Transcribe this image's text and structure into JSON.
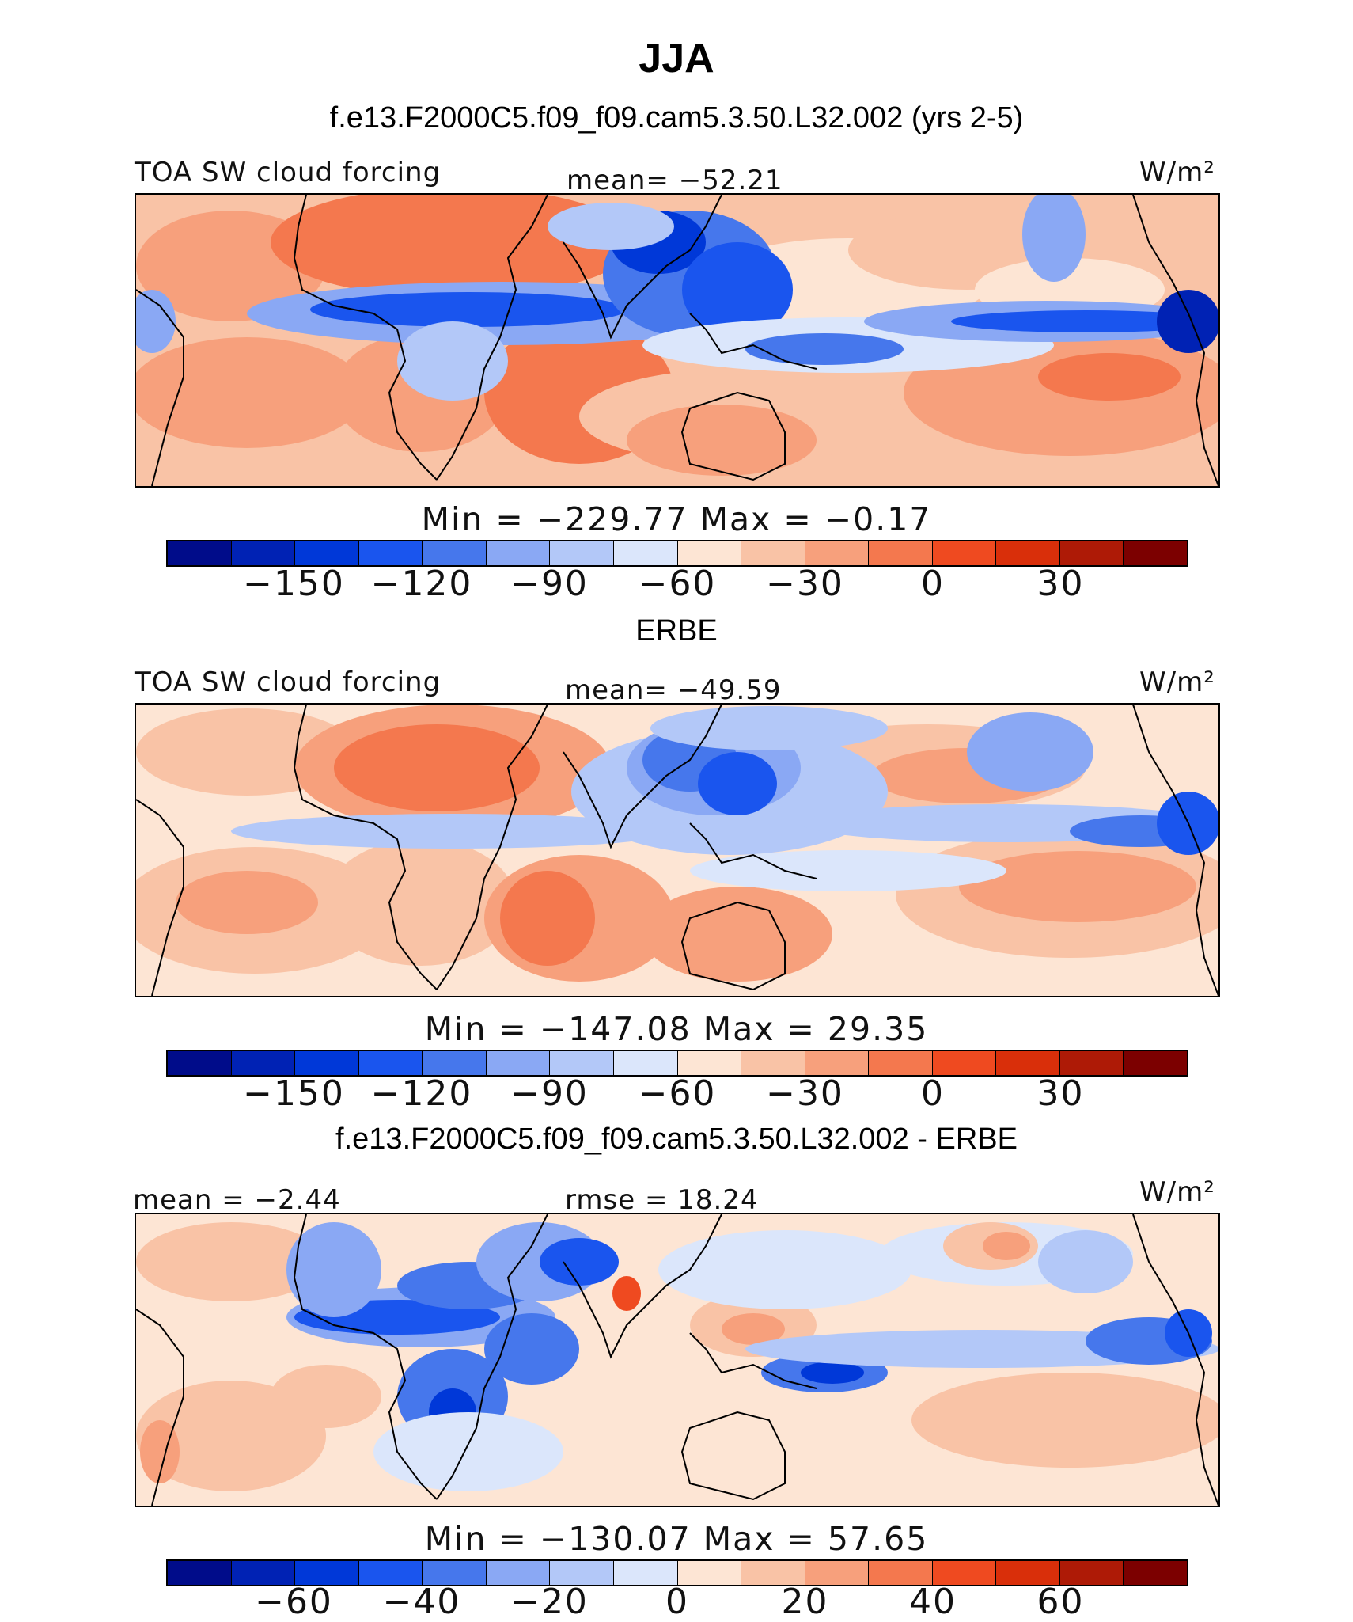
{
  "figure": {
    "title": "JJA",
    "subtitle": "f.e13.F2000C5.f09_f09.cam5.3.50.L32.002 (yrs 2-5)"
  },
  "colors": {
    "palette": [
      "#000c8a",
      "#0022b4",
      "#0038d8",
      "#1a55ee",
      "#4677ec",
      "#8aa8f4",
      "#b3c8f8",
      "#dbe6fb",
      "#fde5d4",
      "#f9c3a6",
      "#f7a07c",
      "#f4784e",
      "#ef4a20",
      "#d92f0a",
      "#ae1a06",
      "#7c0000"
    ],
    "ocean_neutral": "#fad9c3",
    "coast": "#000000"
  },
  "panels": [
    {
      "heading": "",
      "left_label": "TOA SW cloud forcing",
      "center_label": "mean= −52.21",
      "units_label": "W/m²",
      "stats": "Min  =  −229.77  Max  =   −0.17",
      "colorbar_ticks": [
        "−150",
        "−120",
        "−90",
        "−60",
        "−30",
        "0",
        "30"
      ]
    },
    {
      "heading": "ERBE",
      "left_label": "TOA SW cloud forcing",
      "center_label": "mean= −49.59",
      "units_label": "W/m²",
      "stats": "Min  =  −147.08  Max  =   29.35",
      "colorbar_ticks": [
        "−150",
        "−120",
        "−90",
        "−60",
        "−30",
        "0",
        "30"
      ]
    },
    {
      "heading": "f.e13.F2000C5.f09_f09.cam5.3.50.L32.002 - ERBE",
      "left_label": "mean  =   −2.44",
      "center_label": "rmse  =   18.24",
      "units_label": "W/m²",
      "stats": "Min  =  −130.07  Max  =   57.65",
      "colorbar_ticks": [
        "−60",
        "−40",
        "−20",
        "0",
        "20",
        "40",
        "60"
      ]
    }
  ]
}
